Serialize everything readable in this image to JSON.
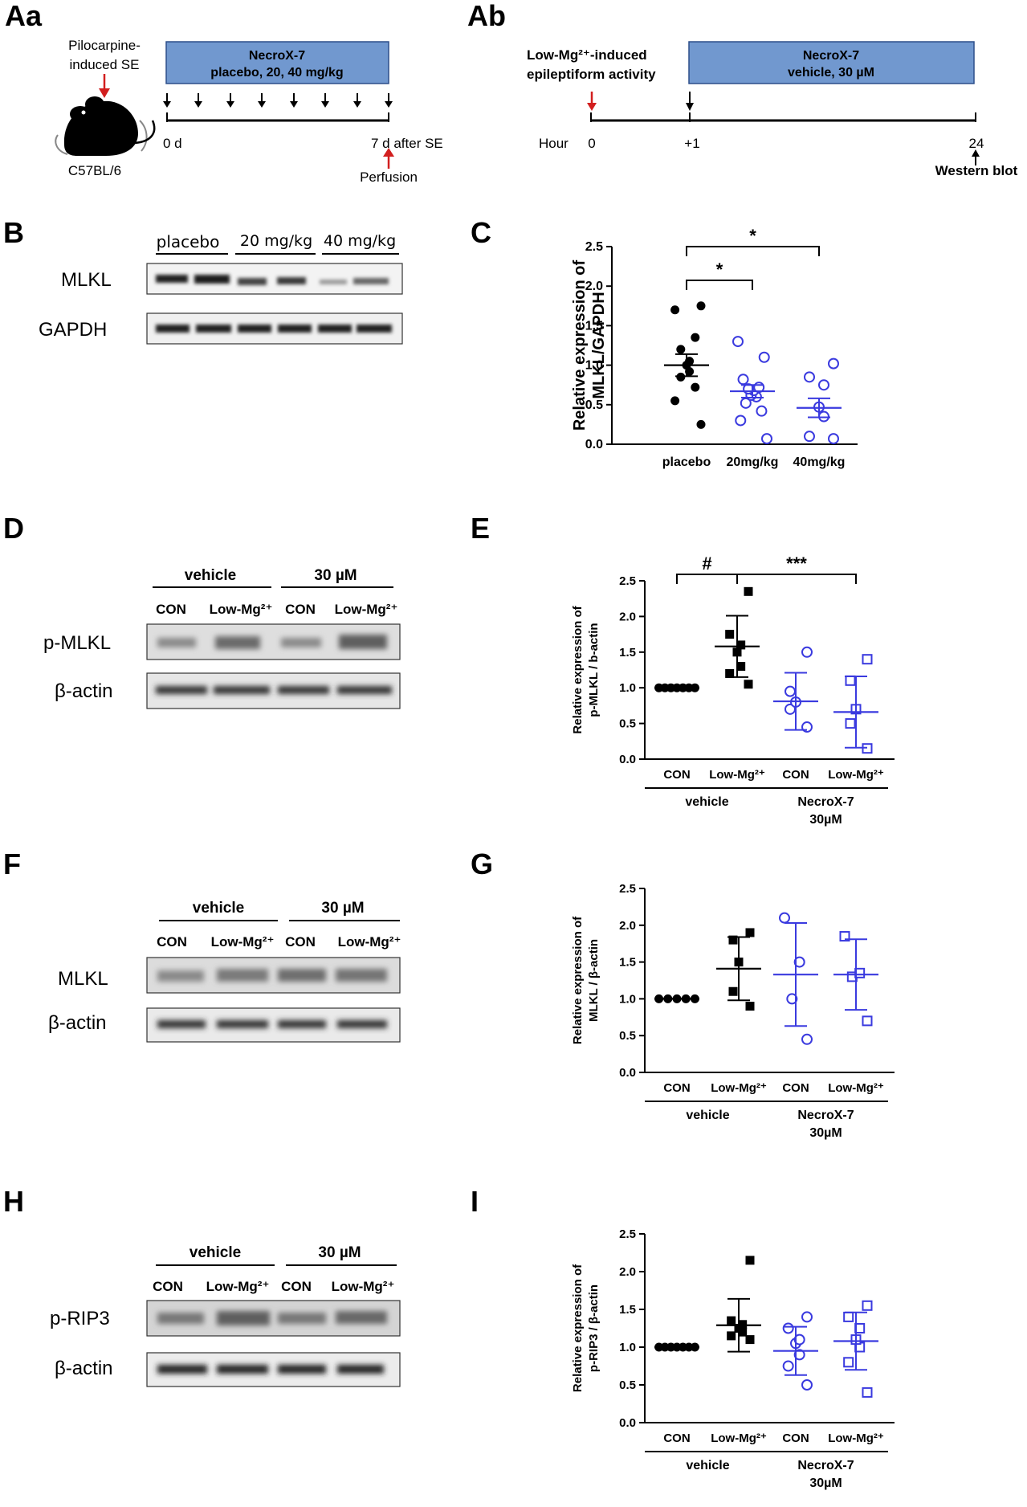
{
  "panels": {
    "Aa": {
      "label": "Aa",
      "pilocarpine": [
        "Pilocarpine-",
        "induced SE"
      ],
      "strain": "C57BL/6",
      "box": [
        "NecroX-7",
        "placebo, 20, 40 mg/kg"
      ],
      "start": "0 d",
      "end": "7 d after SE",
      "perfusion": "Perfusion"
    },
    "Ab": {
      "label": "Ab",
      "induce": [
        "Low-Mg²⁺-induced",
        "epileptiform activity"
      ],
      "box": [
        "NecroX-7",
        "vehicle, 30 µM"
      ],
      "hour": "Hour",
      "ticks": [
        "0",
        "+1",
        "24"
      ],
      "western": "Western blot"
    },
    "B": {
      "label": "B",
      "groups": [
        "placebo",
        "20 mg/kg",
        "40 mg/kg"
      ],
      "rows": [
        "MLKL",
        "GAPDH"
      ]
    },
    "D": {
      "label": "D",
      "groups": [
        "vehicle",
        "30 µM"
      ],
      "lanes": [
        "CON",
        "Low-Mg²⁺",
        "CON",
        "Low-Mg²⁺"
      ],
      "rows": [
        "p-MLKL",
        "β-actin"
      ]
    },
    "F": {
      "label": "F",
      "groups": [
        "vehicle",
        "30 µM"
      ],
      "lanes": [
        "CON",
        "Low-Mg²⁺",
        "CON",
        "Low-Mg²⁺"
      ],
      "rows": [
        "MLKL",
        "β-actin"
      ]
    },
    "H": {
      "label": "H",
      "groups": [
        "vehicle",
        "30 µM"
      ],
      "lanes": [
        "CON",
        "Low-Mg²⁺",
        "CON",
        "Low-Mg²⁺"
      ],
      "rows": [
        "p-RIP3",
        "β-actin"
      ]
    }
  },
  "chart_data": [
    {
      "panel": "C",
      "type": "scatter",
      "ylabel": [
        "Relative expression of",
        "MLKL/GAPDH"
      ],
      "ylim": [
        0,
        2.5
      ],
      "yticks": [
        "0.0",
        "0.5",
        "1.0",
        "1.5",
        "2.0",
        "2.5"
      ],
      "categories": [
        "placebo",
        "20mg/kg",
        "40mg/kg"
      ],
      "groups": [
        {
          "points": [
            0.25,
            0.55,
            0.72,
            0.85,
            0.92,
            1.0,
            1.05,
            1.2,
            1.35,
            1.7,
            1.75
          ],
          "mean": 1.0,
          "sem": 0.14,
          "color": "#000000",
          "shape": "filled-circle"
        },
        {
          "points": [
            0.07,
            0.3,
            0.42,
            0.52,
            0.6,
            0.62,
            0.68,
            0.7,
            0.72,
            0.82,
            1.1,
            1.3
          ],
          "mean": 0.67,
          "sem": 0.08,
          "color": "#3a3adf",
          "shape": "open-circle"
        },
        {
          "points": [
            0.07,
            0.1,
            0.35,
            0.47,
            0.75,
            0.85,
            1.02
          ],
          "mean": 0.46,
          "sem": 0.12,
          "color": "#3a3adf",
          "shape": "open-circle"
        }
      ],
      "significance": [
        {
          "from": 0,
          "to": 1,
          "label": "*"
        },
        {
          "from": 0,
          "to": 2,
          "label": "*"
        }
      ]
    },
    {
      "panel": "E",
      "type": "scatter",
      "ylabel": [
        "Relative expression of",
        "p-MLKL / b-actin"
      ],
      "ylim": [
        0,
        2.5
      ],
      "yticks": [
        "0.0",
        "0.5",
        "1.0",
        "1.5",
        "2.0",
        "2.5"
      ],
      "categories": [
        "CON",
        "Low-Mg²⁺",
        "CON",
        "Low-Mg²⁺"
      ],
      "group_labels": [
        [
          "vehicle"
        ],
        [
          "NecroX-7",
          "30µM"
        ]
      ],
      "groups": [
        {
          "points": [
            1.0,
            1.0,
            1.0,
            1.0,
            1.0,
            1.0,
            1.0
          ],
          "mean": 1.0,
          "sd": 0.0,
          "color": "#000000",
          "shape": "filled-circle"
        },
        {
          "points": [
            1.05,
            1.2,
            1.3,
            1.5,
            1.6,
            1.75,
            2.35
          ],
          "mean": 1.58,
          "sd": 0.43,
          "color": "#000000",
          "shape": "filled-square"
        },
        {
          "points": [
            0.45,
            0.7,
            0.8,
            0.95,
            1.5
          ],
          "mean": 0.81,
          "sd": 0.4,
          "color": "#3a3adf",
          "shape": "open-circle"
        },
        {
          "points": [
            0.15,
            0.5,
            0.7,
            1.1,
            1.4
          ],
          "mean": 0.66,
          "sd": 0.5,
          "color": "#3a3adf",
          "shape": "open-square"
        }
      ],
      "significance": [
        {
          "from": 0,
          "to": 1,
          "label": "#"
        },
        {
          "from": 1,
          "to": 3,
          "label": "***"
        }
      ]
    },
    {
      "panel": "G",
      "type": "scatter",
      "ylabel": [
        "Relative expression of",
        "MLKL / β-actin"
      ],
      "ylim": [
        0,
        2.5
      ],
      "yticks": [
        "0.0",
        "0.5",
        "1.0",
        "1.5",
        "2.0",
        "2.5"
      ],
      "categories": [
        "CON",
        "Low-Mg²⁺",
        "CON",
        "Low-Mg²⁺"
      ],
      "group_labels": [
        [
          "vehicle"
        ],
        [
          "NecroX-7",
          "30µM"
        ]
      ],
      "groups": [
        {
          "points": [
            1.0,
            1.0,
            1.0,
            1.0,
            1.0
          ],
          "mean": 1.0,
          "sd": 0.0,
          "color": "#000000",
          "shape": "filled-circle"
        },
        {
          "points": [
            0.9,
            1.1,
            1.5,
            1.8,
            1.9
          ],
          "mean": 1.41,
          "sd": 0.43,
          "color": "#000000",
          "shape": "filled-square"
        },
        {
          "points": [
            0.45,
            1.0,
            1.5,
            2.1
          ],
          "mean": 1.33,
          "sd": 0.7,
          "color": "#3a3adf",
          "shape": "open-circle"
        },
        {
          "points": [
            0.7,
            1.3,
            1.35,
            1.85
          ],
          "mean": 1.33,
          "sd": 0.48,
          "color": "#3a3adf",
          "shape": "open-square"
        }
      ]
    },
    {
      "panel": "I",
      "type": "scatter",
      "ylabel": [
        "Relative expression of",
        "p-RIP3 / β-actin"
      ],
      "ylim": [
        0,
        2.5
      ],
      "yticks": [
        "0.0",
        "0.5",
        "1.0",
        "1.5",
        "2.0",
        "2.5"
      ],
      "categories": [
        "CON",
        "Low-Mg²⁺",
        "CON",
        "Low-Mg²⁺"
      ],
      "group_labels": [
        [
          "vehicle"
        ],
        [
          "NecroX-7",
          "30µM"
        ]
      ],
      "groups": [
        {
          "points": [
            1.0,
            1.0,
            1.0,
            1.0,
            1.0,
            1.0,
            1.0
          ],
          "mean": 1.0,
          "sd": 0.0,
          "color": "#000000",
          "shape": "filled-circle"
        },
        {
          "points": [
            1.1,
            1.15,
            1.2,
            1.25,
            1.3,
            1.35,
            2.15
          ],
          "mean": 1.29,
          "sd": 0.35,
          "color": "#000000",
          "shape": "filled-square"
        },
        {
          "points": [
            0.5,
            0.75,
            0.9,
            1.05,
            1.1,
            1.25,
            1.4
          ],
          "mean": 0.95,
          "sd": 0.32,
          "color": "#3a3adf",
          "shape": "open-circle"
        },
        {
          "points": [
            0.4,
            0.8,
            1.0,
            1.1,
            1.25,
            1.4,
            1.55
          ],
          "mean": 1.08,
          "sd": 0.38,
          "color": "#3a3adf",
          "shape": "open-square"
        }
      ]
    }
  ]
}
